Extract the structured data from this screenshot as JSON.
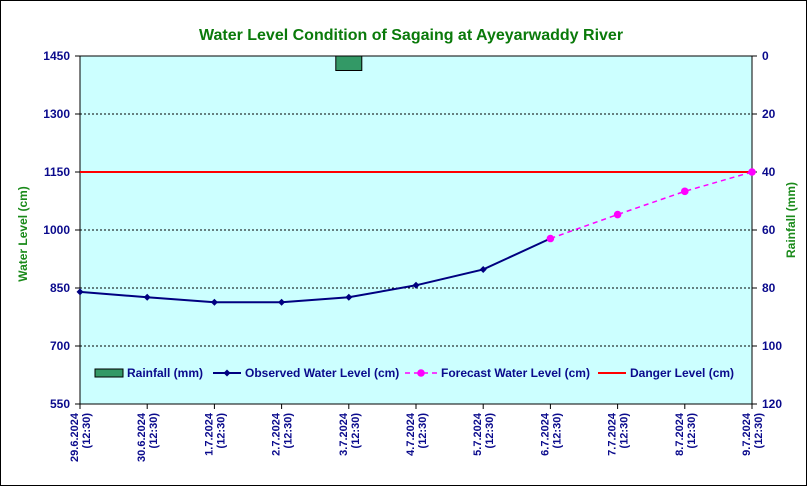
{
  "chart_data": {
    "type": "line",
    "title": "Water Level Condition of Sagaing at Ayeyarwaddy River",
    "ylabel": "Water Level (cm)",
    "ylabel_right": "Rainfall (mm)",
    "categories": [
      [
        "29.6.2024",
        "(12:30)"
      ],
      [
        "30.6.2024",
        "(12:30)"
      ],
      [
        "1.7.2024",
        "(12:30)"
      ],
      [
        "2.7.2024",
        "(12:30)"
      ],
      [
        "3.7.2024",
        "(12:30)"
      ],
      [
        "4.7.2024",
        "(12:30)"
      ],
      [
        "5.7.2024",
        "(12:30)"
      ],
      [
        "6.7.2024",
        "(12:30)"
      ],
      [
        "7.7.2024",
        "(12:30)"
      ],
      [
        "8.7.2024",
        "(12:30)"
      ],
      [
        "9.7.2024",
        "(12:30)"
      ]
    ],
    "ylim": [
      550,
      1450
    ],
    "yticks": [
      550,
      700,
      850,
      1000,
      1150,
      1300,
      1450
    ],
    "ylim_right": [
      0,
      120
    ],
    "yticks_right": [
      0,
      20,
      40,
      60,
      80,
      100,
      120
    ],
    "right_axis_inverted": true,
    "grid": true,
    "legend_position": "bottom-inside",
    "plot_background": "#ccffff",
    "series": [
      {
        "name": "Rainfall (mm)",
        "kind": "bar",
        "axis": "right",
        "color": "#339966",
        "values": [
          null,
          null,
          null,
          null,
          5,
          null,
          null,
          null,
          null,
          null,
          null
        ]
      },
      {
        "name": "Observed Water Level (cm)",
        "kind": "line",
        "axis": "left",
        "color": "#000080",
        "marker": "diamond",
        "values": [
          840,
          826,
          813,
          813,
          826,
          857,
          898,
          978,
          null,
          null,
          null
        ]
      },
      {
        "name": "Forecast Water Level (cm)",
        "kind": "line-dashed",
        "axis": "left",
        "color": "#ff00ff",
        "marker": "circle",
        "values": [
          null,
          null,
          null,
          null,
          null,
          null,
          null,
          978,
          1040,
          1100,
          1150
        ]
      },
      {
        "name": "Danger Level (cm)",
        "kind": "hline",
        "axis": "left",
        "color": "#ff0000",
        "value": 1150
      }
    ]
  }
}
